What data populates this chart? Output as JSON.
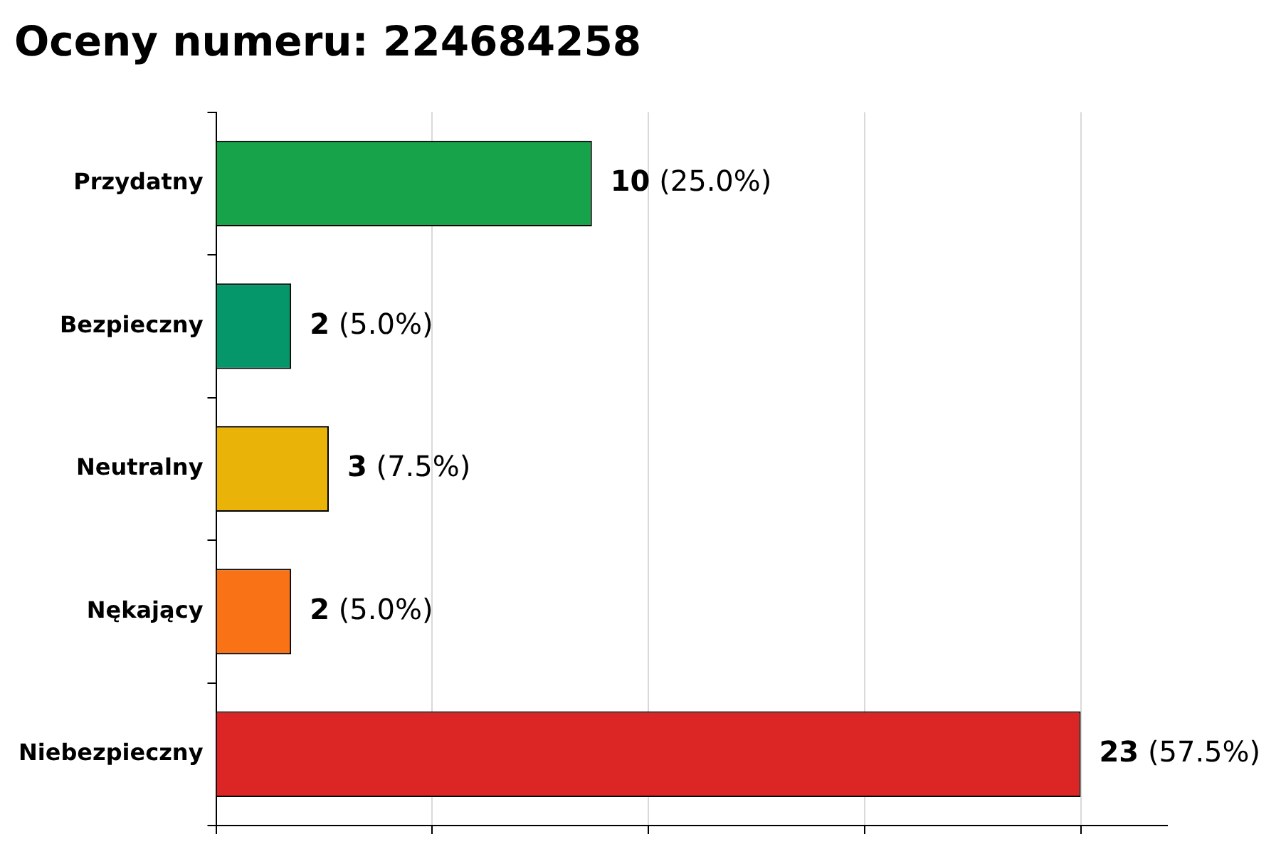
{
  "chart_data": {
    "type": "bar",
    "orientation": "horizontal",
    "title": "Oceny numeru: 224684258",
    "categories": [
      "Przydatny",
      "Bezpieczny",
      "Neutralny",
      "Nękający",
      "Niebezpieczny"
    ],
    "values": [
      10,
      2,
      3,
      2,
      23
    ],
    "colors": [
      "#16a34a",
      "#059669",
      "#eab308",
      "#f97316",
      "#dc2626"
    ],
    "value_labels": [
      "10 (25.0%)",
      "2 (5.0%)",
      "3 (7.5%)",
      "2 (5.0%)",
      "23 (57.5%)"
    ],
    "xlim": [
      0,
      25.3
    ],
    "xticks": [
      {
        "value": 0,
        "label": null
      },
      {
        "value": 5.75,
        "label": null
      },
      {
        "value": 11.5,
        "label": null
      },
      {
        "value": 17.25,
        "label": null
      },
      {
        "value": 23,
        "label": null
      }
    ],
    "tick_labels": "y",
    "grid": "x",
    "legend": false
  }
}
